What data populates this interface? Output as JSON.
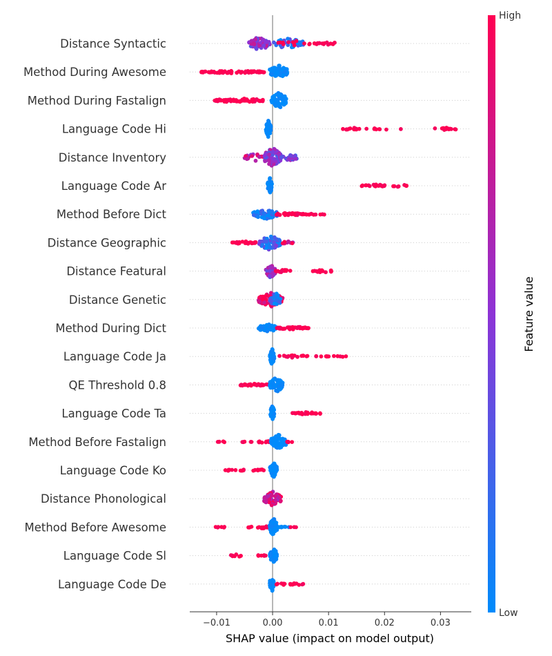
{
  "chart_data": {
    "type": "scatter",
    "xlabel": "SHAP value (impact on model output)",
    "xlim": [
      -0.0148,
      0.0355
    ],
    "xticks": [
      -0.01,
      0.0,
      0.01,
      0.02,
      0.03
    ],
    "xtick_labels": [
      "−0.01",
      "0.00",
      "0.01",
      "0.02",
      "0.03"
    ],
    "colorbar": {
      "title": "Feature value",
      "high_label": "High",
      "low_label": "Low",
      "low_color": "#008bfb",
      "mid_color": "#8d33d6",
      "high_color": "#ff0052"
    },
    "features": [
      {
        "name": "Distance Syntactic",
        "clusters": [
          [
            -0.0042,
            -0.0005,
            60,
            0.5,
            10
          ],
          [
            0.0,
            0.0055,
            45,
            0.15,
            8
          ],
          [
            0.001,
            0.008,
            15,
            1.0,
            4
          ],
          [
            0.008,
            0.012,
            12,
            1.0,
            2
          ]
        ]
      },
      {
        "name": "Method During Awesome",
        "clusters": [
          [
            -0.0128,
            -0.0015,
            70,
            1.0,
            2
          ],
          [
            -0.0005,
            0.0028,
            70,
            0.0,
            10
          ]
        ]
      },
      {
        "name": "Method During Fastalign",
        "clusters": [
          [
            -0.0105,
            -0.0015,
            65,
            1.0,
            3
          ],
          [
            -0.0002,
            0.0025,
            80,
            0.0,
            12
          ]
        ]
      },
      {
        "name": "Language Code Hi",
        "clusters": [
          [
            -0.0012,
            -0.0003,
            40,
            0.0,
            12
          ],
          [
            0.0125,
            0.0155,
            15,
            1.0,
            2
          ],
          [
            0.016,
            0.0245,
            8,
            1.0,
            1
          ],
          [
            0.029,
            0.0335,
            16,
            1.0,
            2
          ]
        ]
      },
      {
        "name": "Distance Inventory",
        "clusters": [
          [
            -0.005,
            -0.0015,
            20,
            0.75,
            6
          ],
          [
            -0.0015,
            0.0015,
            80,
            0.5,
            14
          ],
          [
            0.0015,
            0.0045,
            25,
            0.4,
            5
          ]
        ]
      },
      {
        "name": "Language Code Ar",
        "clusters": [
          [
            -0.0009,
            -0.0001,
            35,
            0.0,
            12
          ],
          [
            0.0155,
            0.0205,
            20,
            1.0,
            2
          ],
          [
            0.0215,
            0.0243,
            8,
            1.0,
            2
          ]
        ]
      },
      {
        "name": "Method Before Dict",
        "clusters": [
          [
            -0.0035,
            0.001,
            60,
            0.05,
            7
          ],
          [
            0.0005,
            0.0055,
            35,
            1.0,
            2
          ],
          [
            0.0055,
            0.0098,
            12,
            1.0,
            1
          ]
        ]
      },
      {
        "name": "Distance Geographic",
        "clusters": [
          [
            -0.0075,
            -0.003,
            30,
            1.0,
            2
          ],
          [
            -0.0025,
            0.0015,
            70,
            0.2,
            11
          ],
          [
            0.0015,
            0.0038,
            10,
            0.85,
            2
          ]
        ]
      },
      {
        "name": "Distance Featural",
        "clusters": [
          [
            -0.0012,
            0.0005,
            40,
            0.55,
            10
          ],
          [
            0.0005,
            0.0032,
            15,
            1.0,
            2
          ],
          [
            0.0068,
            0.011,
            14,
            1.0,
            2
          ]
        ]
      },
      {
        "name": "Distance Genetic",
        "clusters": [
          [
            -0.0025,
            0.0018,
            90,
            0.95,
            11
          ],
          [
            -0.0005,
            0.0015,
            30,
            0.1,
            10
          ]
        ]
      },
      {
        "name": "Method During Dict",
        "clusters": [
          [
            -0.0025,
            0.0008,
            55,
            0.0,
            6
          ],
          [
            0.0005,
            0.0065,
            40,
            1.0,
            2
          ]
        ]
      },
      {
        "name": "Language Code Ja",
        "clusters": [
          [
            -0.0005,
            0.0003,
            40,
            0.0,
            12
          ],
          [
            0.001,
            0.0065,
            16,
            1.0,
            2
          ],
          [
            0.0075,
            0.0135,
            12,
            1.0,
            1
          ]
        ]
      },
      {
        "name": "QE Threshold 0.8",
        "clusters": [
          [
            -0.006,
            -0.0005,
            30,
            1.0,
            2
          ],
          [
            -0.0005,
            0.0018,
            55,
            0.0,
            11
          ]
        ]
      },
      {
        "name": "Language Code Ta",
        "clusters": [
          [
            -0.0004,
            0.0003,
            30,
            0.0,
            12
          ],
          [
            0.0035,
            0.0085,
            25,
            1.0,
            2
          ]
        ]
      },
      {
        "name": "Method Before Fastalign",
        "clusters": [
          [
            -0.0098,
            -0.0082,
            5,
            1.0,
            1
          ],
          [
            -0.0055,
            -0.0035,
            6,
            1.0,
            1
          ],
          [
            -0.0025,
            -0.0005,
            10,
            1.0,
            2
          ],
          [
            -0.0003,
            0.0025,
            60,
            0.0,
            11
          ],
          [
            0.0025,
            0.0038,
            5,
            1.0,
            1
          ]
        ]
      },
      {
        "name": "Language Code Ko",
        "clusters": [
          [
            -0.0085,
            -0.0065,
            6,
            1.0,
            1
          ],
          [
            -0.006,
            -0.0045,
            5,
            1.0,
            1
          ],
          [
            -0.0035,
            -0.0015,
            8,
            1.0,
            2
          ],
          [
            -0.0005,
            0.0008,
            40,
            0.0,
            12
          ]
        ]
      },
      {
        "name": "Distance Phonological",
        "clusters": [
          [
            -0.0015,
            0.0015,
            70,
            0.75,
            11
          ]
        ]
      },
      {
        "name": "Method Before Awesome",
        "clusters": [
          [
            -0.0102,
            -0.0083,
            6,
            1.0,
            1
          ],
          [
            -0.0045,
            -0.0035,
            4,
            1.0,
            1
          ],
          [
            -0.0028,
            -0.0008,
            12,
            1.0,
            2
          ],
          [
            -0.0005,
            0.0008,
            60,
            0.0,
            14
          ],
          [
            0.001,
            0.0032,
            8,
            0.0,
            1
          ],
          [
            0.0032,
            0.0042,
            3,
            1.0,
            1
          ]
        ]
      },
      {
        "name": "Language Code Sl",
        "clusters": [
          [
            -0.0075,
            -0.0052,
            8,
            1.0,
            2
          ],
          [
            -0.0028,
            -0.0012,
            7,
            1.0,
            2
          ],
          [
            -0.0005,
            0.0008,
            40,
            0.0,
            12
          ]
        ]
      },
      {
        "name": "Language Code De",
        "clusters": [
          [
            -0.0005,
            0.0002,
            40,
            0.0,
            12
          ],
          [
            0.0007,
            0.0022,
            8,
            1.0,
            2
          ],
          [
            0.003,
            0.0055,
            14,
            1.0,
            2
          ]
        ]
      }
    ]
  }
}
